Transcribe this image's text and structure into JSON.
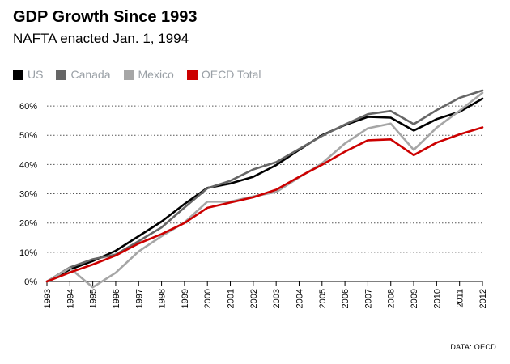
{
  "header": {
    "title": "GDP Growth Since 1993",
    "subtitle": "NAFTA enacted Jan. 1, 1994"
  },
  "source": "DATA: OECD",
  "chart_data": {
    "type": "line",
    "x": [
      1993,
      1994,
      1995,
      1996,
      1997,
      1998,
      1999,
      2000,
      2001,
      2002,
      2003,
      2004,
      2005,
      2006,
      2007,
      2008,
      2009,
      2010,
      2011,
      2012
    ],
    "xlim": [
      1993,
      2012
    ],
    "ylim": [
      0,
      65
    ],
    "yticks": [
      0,
      10,
      20,
      30,
      40,
      50,
      60
    ],
    "ytick_labels": [
      "0%",
      "10%",
      "20%",
      "30%",
      "40%",
      "50%",
      "60%"
    ],
    "grid": "horizontal-dotted",
    "legend_position": "top-left",
    "series": [
      {
        "name": "US",
        "color": "#000000",
        "values": [
          0,
          4.1,
          7,
          10.5,
          15.5,
          20.5,
          26.5,
          32,
          33.5,
          35.8,
          39.8,
          45,
          50,
          53.5,
          56.3,
          56,
          51.6,
          55.5,
          58,
          62.5
        ]
      },
      {
        "name": "Canada",
        "color": "#666666",
        "values": [
          0,
          4.8,
          7.6,
          9.2,
          13.8,
          18.5,
          25.3,
          31.9,
          34.4,
          38.3,
          40.8,
          45.3,
          49.8,
          53.7,
          57.2,
          58.3,
          53.8,
          58.6,
          62.8,
          65.3
        ]
      },
      {
        "name": "Mexico",
        "color": "#a6a6a6",
        "values": [
          0,
          4.6,
          -2,
          3,
          10.3,
          15.5,
          20.2,
          27.3,
          27.3,
          29.1,
          30.6,
          35.6,
          40.4,
          47.2,
          52.4,
          54,
          45,
          52.6,
          58.4,
          64.5
        ]
      },
      {
        "name": "OECD Total",
        "color": "#cc0000",
        "values": [
          0,
          3.1,
          5.8,
          8.9,
          13,
          16.2,
          20,
          25.2,
          27,
          28.8,
          31.4,
          35.8,
          39.9,
          44.4,
          48.3,
          48.6,
          43.2,
          47.5,
          50.3,
          52.7
        ]
      }
    ]
  }
}
